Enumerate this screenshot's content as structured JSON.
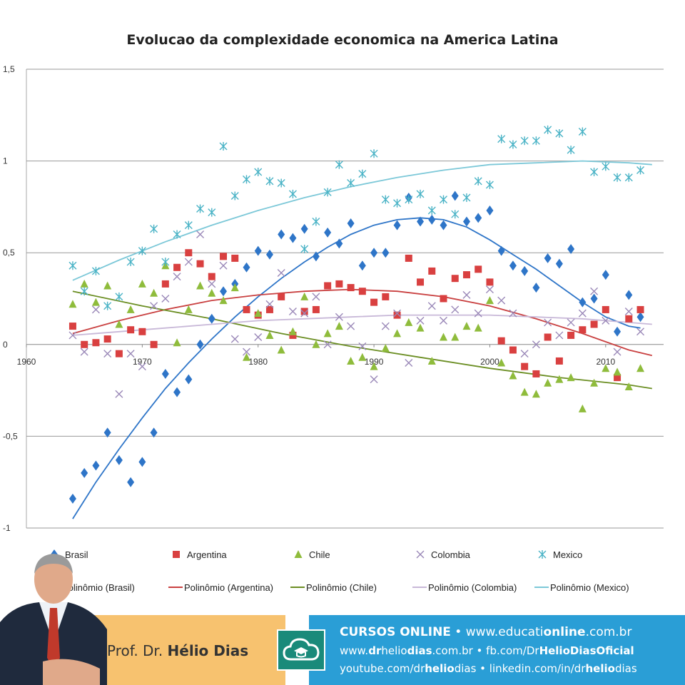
{
  "chart_data": {
    "type": "scatter",
    "title": "Evolucao da complexidade economica na America Latina",
    "xlabel": "",
    "ylabel": "",
    "xlim": [
      1960,
      2015
    ],
    "ylim": [
      -1,
      1.5
    ],
    "x_ticks": [
      "1960",
      "1970",
      "1980",
      "1990",
      "2000",
      "2010"
    ],
    "y_ticks": [
      "1,5",
      "1",
      "0,5",
      "0",
      "-0,5",
      "-1"
    ],
    "grid": "horizontal",
    "legend_position": "bottom",
    "series": [
      {
        "name": "Brasil",
        "marker": "diamond",
        "color": "#2e75c8",
        "x": [
          1964,
          1965,
          1966,
          1967,
          1968,
          1969,
          1970,
          1971,
          1972,
          1973,
          1974,
          1975,
          1976,
          1977,
          1978,
          1979,
          1980,
          1981,
          1982,
          1983,
          1984,
          1985,
          1986,
          1987,
          1988,
          1989,
          1990,
          1991,
          1992,
          1993,
          1994,
          1995,
          1996,
          1997,
          1998,
          1999,
          2000,
          2001,
          2002,
          2003,
          2004,
          2005,
          2006,
          2007,
          2008,
          2009,
          2010,
          2011,
          2012,
          2013
        ],
        "y": [
          -0.84,
          -0.7,
          -0.66,
          -0.48,
          -0.63,
          -0.75,
          -0.64,
          -0.48,
          -0.16,
          -0.26,
          -0.19,
          0.0,
          0.14,
          0.29,
          0.33,
          0.42,
          0.51,
          0.49,
          0.6,
          0.58,
          0.63,
          0.48,
          0.61,
          0.55,
          0.66,
          0.43,
          0.5,
          0.5,
          0.65,
          0.8,
          0.67,
          0.68,
          0.65,
          0.81,
          0.67,
          0.69,
          0.73,
          0.51,
          0.43,
          0.4,
          0.31,
          0.47,
          0.44,
          0.52,
          0.23,
          0.25,
          0.38,
          0.07,
          0.27,
          0.15
        ]
      },
      {
        "name": "Argentina",
        "marker": "square",
        "color": "#d94040",
        "x": [
          1964,
          1965,
          1966,
          1967,
          1968,
          1969,
          1970,
          1971,
          1972,
          1973,
          1974,
          1975,
          1976,
          1977,
          1978,
          1979,
          1980,
          1981,
          1982,
          1983,
          1984,
          1985,
          1986,
          1987,
          1988,
          1989,
          1990,
          1991,
          1992,
          1993,
          1994,
          1995,
          1996,
          1997,
          1998,
          1999,
          2000,
          2001,
          2002,
          2003,
          2004,
          2005,
          2006,
          2007,
          2008,
          2009,
          2010,
          2011,
          2012,
          2013
        ],
        "y": [
          0.1,
          0.0,
          0.01,
          0.03,
          -0.05,
          0.08,
          0.07,
          0.0,
          0.33,
          0.42,
          0.5,
          0.44,
          0.37,
          0.48,
          0.47,
          0.19,
          0.16,
          0.19,
          0.26,
          0.05,
          0.18,
          0.19,
          0.32,
          0.33,
          0.31,
          0.29,
          0.23,
          0.26,
          0.16,
          0.47,
          0.34,
          0.4,
          0.25,
          0.36,
          0.38,
          0.41,
          0.34,
          0.02,
          -0.03,
          -0.12,
          -0.16,
          0.04,
          -0.09,
          0.05,
          0.08,
          0.11,
          0.19,
          -0.18,
          0.14,
          0.19
        ]
      },
      {
        "name": "Chile",
        "marker": "triangle",
        "color": "#8fbc3c",
        "x": [
          1964,
          1965,
          1966,
          1967,
          1968,
          1969,
          1970,
          1971,
          1972,
          1973,
          1974,
          1975,
          1976,
          1977,
          1978,
          1979,
          1980,
          1981,
          1982,
          1983,
          1984,
          1985,
          1986,
          1987,
          1988,
          1989,
          1990,
          1991,
          1992,
          1993,
          1994,
          1995,
          1996,
          1997,
          1998,
          1999,
          2000,
          2001,
          2002,
          2003,
          2004,
          2005,
          2006,
          2007,
          2008,
          2009,
          2010,
          2011,
          2012,
          2013
        ],
        "y": [
          0.22,
          0.33,
          0.23,
          0.32,
          0.11,
          0.19,
          0.33,
          0.28,
          0.43,
          0.01,
          0.19,
          0.32,
          0.28,
          0.24,
          0.31,
          -0.07,
          0.17,
          0.05,
          -0.03,
          0.07,
          0.26,
          0.0,
          0.06,
          0.1,
          -0.09,
          -0.07,
          -0.12,
          -0.02,
          0.06,
          0.12,
          0.09,
          -0.09,
          0.04,
          0.04,
          0.1,
          0.09,
          0.24,
          -0.1,
          -0.17,
          -0.26,
          -0.27,
          -0.21,
          -0.19,
          -0.18,
          -0.35,
          -0.21,
          -0.13,
          -0.15,
          -0.23,
          -0.13
        ]
      },
      {
        "name": "Colombia",
        "marker": "x",
        "color": "#9a88b8",
        "x": [
          1964,
          1965,
          1966,
          1967,
          1968,
          1969,
          1970,
          1971,
          1972,
          1973,
          1974,
          1975,
          1976,
          1977,
          1978,
          1979,
          1980,
          1981,
          1982,
          1983,
          1984,
          1985,
          1986,
          1987,
          1988,
          1989,
          1990,
          1991,
          1992,
          1993,
          1994,
          1995,
          1996,
          1997,
          1998,
          1999,
          2000,
          2001,
          2002,
          2003,
          2004,
          2005,
          2006,
          2007,
          2008,
          2009,
          2010,
          2011,
          2012,
          2013
        ],
        "y": [
          0.05,
          -0.04,
          0.19,
          -0.05,
          -0.27,
          -0.05,
          -0.12,
          0.21,
          0.25,
          0.37,
          0.45,
          0.6,
          0.33,
          0.43,
          0.03,
          -0.04,
          0.04,
          0.22,
          0.39,
          0.18,
          0.17,
          0.26,
          0.0,
          0.15,
          0.1,
          -0.01,
          -0.19,
          0.1,
          0.17,
          -0.1,
          0.13,
          0.21,
          0.13,
          0.19,
          0.27,
          0.17,
          0.3,
          0.24,
          0.17,
          -0.05,
          0.0,
          0.12,
          0.05,
          0.12,
          0.17,
          0.29,
          0.13,
          -0.04,
          0.18,
          0.07
        ]
      },
      {
        "name": "Mexico",
        "marker": "asterisk",
        "color": "#4ab3c6",
        "x": [
          1964,
          1965,
          1966,
          1967,
          1968,
          1969,
          1970,
          1971,
          1972,
          1973,
          1974,
          1975,
          1976,
          1977,
          1978,
          1979,
          1980,
          1981,
          1982,
          1983,
          1984,
          1985,
          1986,
          1987,
          1988,
          1989,
          1990,
          1991,
          1992,
          1993,
          1994,
          1995,
          1996,
          1997,
          1998,
          1999,
          2000,
          2001,
          2002,
          2003,
          2004,
          2005,
          2006,
          2007,
          2008,
          2009,
          2010,
          2011,
          2012,
          2013
        ],
        "y": [
          0.43,
          0.29,
          0.4,
          0.21,
          0.26,
          0.45,
          0.51,
          0.63,
          0.45,
          0.6,
          0.65,
          0.74,
          0.72,
          1.08,
          0.81,
          0.9,
          0.94,
          0.89,
          0.88,
          0.82,
          0.52,
          0.67,
          0.83,
          0.98,
          0.88,
          0.93,
          1.04,
          0.79,
          0.77,
          0.79,
          0.82,
          0.73,
          0.79,
          0.71,
          0.8,
          0.89,
          0.87,
          1.12,
          1.09,
          1.11,
          1.11,
          1.17,
          1.15,
          1.06,
          1.16,
          0.94,
          0.97,
          0.91,
          0.91,
          0.95
        ]
      }
    ],
    "trendlines": [
      {
        "name": "Polinômio (Brasil)",
        "color": "#2e75c8",
        "x": [
          1964,
          1966,
          1968,
          1970,
          1972,
          1974,
          1976,
          1978,
          1980,
          1982,
          1984,
          1986,
          1988,
          1990,
          1992,
          1994,
          1996,
          1998,
          2000,
          2002,
          2004,
          2006,
          2008,
          2010,
          2012,
          2013
        ],
        "y": [
          -0.95,
          -0.75,
          -0.57,
          -0.4,
          -0.24,
          -0.1,
          0.03,
          0.15,
          0.26,
          0.36,
          0.45,
          0.53,
          0.6,
          0.65,
          0.68,
          0.69,
          0.68,
          0.64,
          0.57,
          0.49,
          0.41,
          0.32,
          0.23,
          0.15,
          0.1,
          0.09
        ]
      },
      {
        "name": "Polinômio (Argentina)",
        "color": "#c94040",
        "x": [
          1964,
          1968,
          1972,
          1976,
          1980,
          1984,
          1988,
          1992,
          1996,
          2000,
          2004,
          2008,
          2012,
          2014
        ],
        "y": [
          0.06,
          0.13,
          0.19,
          0.24,
          0.27,
          0.29,
          0.3,
          0.29,
          0.26,
          0.21,
          0.14,
          0.06,
          -0.03,
          -0.06
        ]
      },
      {
        "name": "Polinômio (Chile)",
        "color": "#6b8e23",
        "x": [
          1964,
          1970,
          1976,
          1982,
          1988,
          1994,
          2000,
          2006,
          2012,
          2014
        ],
        "y": [
          0.29,
          0.21,
          0.14,
          0.06,
          -0.01,
          -0.07,
          -0.13,
          -0.18,
          -0.22,
          -0.24
        ]
      },
      {
        "name": "Polinômio (Colombia)",
        "color": "#c8b8d8",
        "x": [
          1964,
          1968,
          1972,
          1976,
          1980,
          1984,
          1988,
          1992,
          1996,
          2000,
          2004,
          2008,
          2012,
          2014
        ],
        "y": [
          0.05,
          0.07,
          0.09,
          0.11,
          0.13,
          0.14,
          0.15,
          0.16,
          0.16,
          0.16,
          0.15,
          0.14,
          0.12,
          0.11
        ]
      },
      {
        "name": "Polinômio (Mexico)",
        "color": "#7cc8d8",
        "x": [
          1964,
          1968,
          1972,
          1976,
          1980,
          1984,
          1988,
          1992,
          1996,
          2000,
          2004,
          2008,
          2012,
          2014
        ],
        "y": [
          0.35,
          0.46,
          0.56,
          0.65,
          0.73,
          0.8,
          0.86,
          0.91,
          0.95,
          0.98,
          0.99,
          1.0,
          0.99,
          0.98
        ]
      }
    ]
  },
  "footer": {
    "prof_prefix": "Prof. Dr. ",
    "prof_name": "Hélio Dias",
    "line1_bold": "CURSOS ONLINE",
    "line1_sep": " • ",
    "line1_a": "www.educati",
    "line1_b": "online",
    "line1_c": ".com.br",
    "line2_a": "www.",
    "line2_b": "dr",
    "line2_c": "helio",
    "line2_d": "dias",
    "line2_e": ".com.br • fb.com/Dr",
    "line2_f": "HelioDiasOficial",
    "line3_a": "youtube.com/dr",
    "line3_b": "helio",
    "line3_c": "dias • linkedin.com/in/dr",
    "line3_d": "helio",
    "line3_e": "dias",
    "logo_icon": "cloud-graduation-icon"
  }
}
